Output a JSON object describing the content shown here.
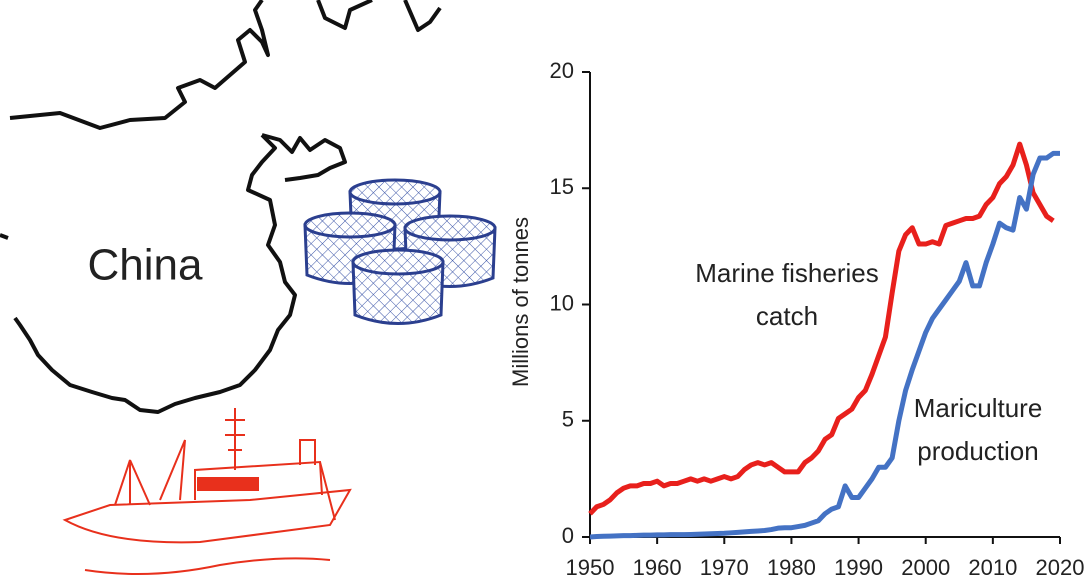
{
  "illustration": {
    "label": "China"
  },
  "chart_data": {
    "type": "line",
    "y_label": "Millions of tonnes",
    "x": [
      1950,
      1951,
      1952,
      1953,
      1954,
      1955,
      1956,
      1957,
      1958,
      1959,
      1960,
      1961,
      1962,
      1963,
      1964,
      1965,
      1966,
      1967,
      1968,
      1969,
      1970,
      1971,
      1972,
      1973,
      1974,
      1975,
      1976,
      1977,
      1978,
      1979,
      1980,
      1981,
      1982,
      1983,
      1984,
      1985,
      1986,
      1987,
      1988,
      1989,
      1990,
      1991,
      1992,
      1993,
      1994,
      1995,
      1996,
      1997,
      1998,
      1999,
      2000,
      2001,
      2002,
      2003,
      2004,
      2005,
      2006,
      2007,
      2008,
      2009,
      2010,
      2011,
      2012,
      2013,
      2014,
      2015,
      2016,
      2017,
      2018,
      2019,
      2020
    ],
    "series": [
      {
        "color": "#e8201c",
        "values": [
          1.0,
          1.3,
          1.4,
          1.6,
          1.9,
          2.1,
          2.2,
          2.2,
          2.3,
          2.3,
          2.4,
          2.2,
          2.3,
          2.3,
          2.4,
          2.5,
          2.4,
          2.5,
          2.4,
          2.5,
          2.6,
          2.5,
          2.6,
          2.9,
          3.1,
          3.2,
          3.1,
          3.2,
          3.0,
          2.8,
          2.8,
          2.8,
          3.2,
          3.4,
          3.7,
          4.2,
          4.4,
          5.1,
          5.3,
          5.5,
          6.0,
          6.3,
          7.0,
          7.8,
          8.6,
          10.5,
          12.3,
          13.0,
          13.3,
          12.6,
          12.6,
          12.7,
          12.6,
          13.4,
          13.5,
          13.6,
          13.7,
          13.7,
          13.8,
          14.3,
          14.6,
          15.2,
          15.5,
          16.0,
          16.9,
          16.0,
          14.8,
          14.3,
          13.8,
          13.6,
          null
        ]
      },
      {
        "color": "#4472c4",
        "values": [
          0.0,
          0.02,
          0.03,
          0.04,
          0.05,
          0.06,
          0.06,
          0.07,
          0.08,
          0.08,
          0.09,
          0.09,
          0.1,
          0.1,
          0.1,
          0.11,
          0.12,
          0.13,
          0.14,
          0.15,
          0.16,
          0.18,
          0.2,
          0.22,
          0.24,
          0.26,
          0.28,
          0.32,
          0.38,
          0.4,
          0.4,
          0.45,
          0.5,
          0.6,
          0.7,
          1.0,
          1.2,
          1.3,
          2.2,
          1.7,
          1.7,
          2.1,
          2.5,
          3.0,
          3.0,
          3.4,
          5.0,
          6.3,
          7.2,
          8.0,
          8.8,
          9.4,
          9.8,
          10.2,
          10.6,
          11.0,
          11.8,
          10.8,
          10.8,
          11.8,
          12.6,
          13.5,
          13.3,
          13.2,
          14.6,
          14.1,
          15.6,
          16.3,
          16.3,
          16.5,
          16.5
        ]
      }
    ],
    "annotations": [
      {
        "lines": [
          "Marine fisheries",
          "catch"
        ]
      },
      {
        "lines": [
          "Mariculture",
          "production"
        ]
      }
    ],
    "xlim": [
      1950,
      2020
    ],
    "xticks": [
      1950,
      1960,
      1970,
      1980,
      1990,
      2000,
      2010,
      2020
    ],
    "ylim": [
      0,
      20
    ],
    "yticks": [
      0,
      5,
      10,
      15,
      20
    ]
  }
}
